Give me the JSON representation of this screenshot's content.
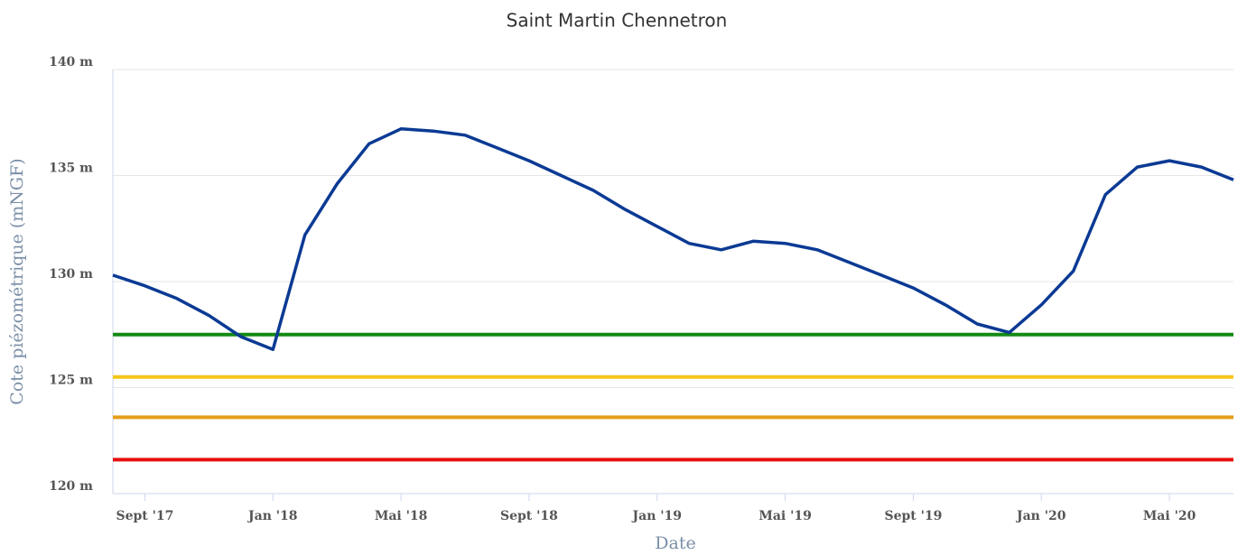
{
  "chart_data": {
    "type": "line",
    "title": "Saint Martin Chennetron",
    "x_label": "Date",
    "y_label": "Cote piézométrique (mNGF)",
    "x": [
      "2017-08",
      "2017-09",
      "2017-10",
      "2017-11",
      "2017-12",
      "2018-01",
      "2018-02",
      "2018-03",
      "2018-04",
      "2018-05",
      "2018-06",
      "2018-07",
      "2018-08",
      "2018-09",
      "2018-10",
      "2018-11",
      "2018-12",
      "2019-01",
      "2019-02",
      "2019-03",
      "2019-04",
      "2019-05",
      "2019-06",
      "2019-07",
      "2019-08",
      "2019-09",
      "2019-10",
      "2019-11",
      "2019-12",
      "2020-01",
      "2020-02",
      "2020-03",
      "2020-04",
      "2020-05",
      "2020-06",
      "2020-07"
    ],
    "series": [
      {
        "color": "#0b3a94",
        "values": [
          130.3,
          129.8,
          129.2,
          128.4,
          127.4,
          126.8,
          132.2,
          134.6,
          136.5,
          137.2,
          137.1,
          136.9,
          136.3,
          135.7,
          135.0,
          134.3,
          133.4,
          132.6,
          131.8,
          131.5,
          131.9,
          131.8,
          131.5,
          130.9,
          130.3,
          129.7,
          128.9,
          128.0,
          127.6,
          128.9,
          130.5,
          134.1,
          135.4,
          135.7,
          135.4,
          134.8
        ]
      }
    ],
    "thresholds": [
      {
        "value": 127.5,
        "color": "#138a13"
      },
      {
        "value": 125.5,
        "color": "#f5c518"
      },
      {
        "value": 123.6,
        "color": "#e59e1a"
      },
      {
        "value": 121.6,
        "color": "#e80f0f"
      }
    ],
    "xlim": [
      "2017-08",
      "2020-07"
    ],
    "xticks": [
      {
        "value": "2017-09",
        "label": "Sept '17"
      },
      {
        "value": "2018-01",
        "label": "Jan '18"
      },
      {
        "value": "2018-05",
        "label": "Mai '18"
      },
      {
        "value": "2018-09",
        "label": "Sept '18"
      },
      {
        "value": "2019-01",
        "label": "Jan '19"
      },
      {
        "value": "2019-05",
        "label": "Mai '19"
      },
      {
        "value": "2019-09",
        "label": "Sept '19"
      },
      {
        "value": "2020-01",
        "label": "Jan '20"
      },
      {
        "value": "2020-05",
        "label": "Mai '20"
      }
    ],
    "ylim": [
      120,
      140
    ],
    "yticks": [
      {
        "value": 120,
        "label": "120 m"
      },
      {
        "value": 125,
        "label": "125 m"
      },
      {
        "value": 130,
        "label": "130 m"
      },
      {
        "value": 135,
        "label": "135 m"
      },
      {
        "value": 140,
        "label": "140 m"
      }
    ],
    "grid": true
  }
}
